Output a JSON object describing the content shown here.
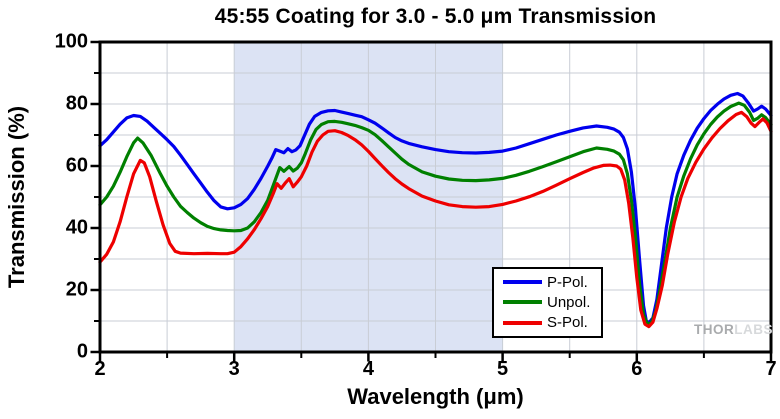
{
  "title": "45:55 Coating for 3.0 - 5.0 μm Transmission",
  "watermark": {
    "part1": "THOR",
    "part2": "LABS"
  },
  "colors": {
    "p_pol": "#0000EE",
    "unpol": "#008000",
    "s_pol": "#EE0000",
    "shaded_band": "#dce3f4",
    "grid": "#c9cdd5",
    "frame": "#000000"
  },
  "chart_data": {
    "type": "line",
    "title": "45:55 Coating for 3.0 - 5.0 μm Transmission",
    "xlabel": "Wavelength (μm)",
    "ylabel": "Transmission (%)",
    "xlim": [
      2,
      7
    ],
    "ylim": [
      0,
      100
    ],
    "x_major_ticks": [
      2,
      3,
      4,
      5,
      6,
      7
    ],
    "x_minor_ticks": [
      2.5,
      3.5,
      4.5,
      5.5,
      6.5
    ],
    "y_major_ticks": [
      0,
      20,
      40,
      60,
      80,
      100
    ],
    "y_minor_ticks": [
      10,
      30,
      50,
      70,
      90
    ],
    "grid": {
      "on": true,
      "x_step": 0.5,
      "y_step": 10
    },
    "shaded_band": {
      "x_from": 3.0,
      "x_to": 5.0
    },
    "legend_position": "inside bottom-center",
    "series": [
      {
        "name": "P-Pol.",
        "color": "#0000EE",
        "points": [
          [
            2.0,
            66.5
          ],
          [
            2.05,
            68.5
          ],
          [
            2.1,
            71.0
          ],
          [
            2.15,
            73.5
          ],
          [
            2.2,
            75.5
          ],
          [
            2.25,
            76.3
          ],
          [
            2.3,
            76.0
          ],
          [
            2.35,
            74.5
          ],
          [
            2.4,
            72.5
          ],
          [
            2.45,
            70.5
          ],
          [
            2.5,
            68.5
          ],
          [
            2.55,
            66.3
          ],
          [
            2.6,
            63.5
          ],
          [
            2.65,
            60.5
          ],
          [
            2.7,
            57.5
          ],
          [
            2.75,
            54.5
          ],
          [
            2.8,
            51.5
          ],
          [
            2.85,
            48.8
          ],
          [
            2.9,
            46.8
          ],
          [
            2.95,
            46.2
          ],
          [
            3.0,
            46.5
          ],
          [
            3.05,
            47.6
          ],
          [
            3.1,
            49.5
          ],
          [
            3.15,
            52.5
          ],
          [
            3.2,
            56.0
          ],
          [
            3.25,
            60.0
          ],
          [
            3.28,
            62.5
          ],
          [
            3.31,
            65.3
          ],
          [
            3.34,
            64.8
          ],
          [
            3.37,
            64.3
          ],
          [
            3.4,
            65.6
          ],
          [
            3.43,
            64.6
          ],
          [
            3.46,
            65.2
          ],
          [
            3.49,
            66.5
          ],
          [
            3.52,
            69.5
          ],
          [
            3.56,
            73.5
          ],
          [
            3.6,
            76.0
          ],
          [
            3.65,
            77.3
          ],
          [
            3.7,
            77.8
          ],
          [
            3.75,
            77.9
          ],
          [
            3.8,
            77.4
          ],
          [
            3.85,
            76.9
          ],
          [
            3.9,
            76.4
          ],
          [
            3.95,
            75.9
          ],
          [
            4.0,
            74.9
          ],
          [
            4.05,
            73.8
          ],
          [
            4.1,
            72.3
          ],
          [
            4.15,
            70.7
          ],
          [
            4.2,
            69.2
          ],
          [
            4.25,
            68.1
          ],
          [
            4.3,
            67.3
          ],
          [
            4.4,
            66.2
          ],
          [
            4.5,
            65.3
          ],
          [
            4.6,
            64.6
          ],
          [
            4.7,
            64.3
          ],
          [
            4.8,
            64.2
          ],
          [
            4.9,
            64.4
          ],
          [
            5.0,
            64.8
          ],
          [
            5.1,
            65.8
          ],
          [
            5.2,
            67.2
          ],
          [
            5.3,
            68.6
          ],
          [
            5.4,
            70.0
          ],
          [
            5.5,
            71.2
          ],
          [
            5.6,
            72.3
          ],
          [
            5.7,
            72.9
          ],
          [
            5.78,
            72.5
          ],
          [
            5.83,
            71.9
          ],
          [
            5.87,
            70.9
          ],
          [
            5.9,
            69.2
          ],
          [
            5.93,
            65.5
          ],
          [
            5.96,
            58.0
          ],
          [
            5.99,
            46.0
          ],
          [
            6.02,
            30.0
          ],
          [
            6.05,
            15.0
          ],
          [
            6.07,
            10.2
          ],
          [
            6.09,
            9.4
          ],
          [
            6.12,
            11.0
          ],
          [
            6.15,
            17.0
          ],
          [
            6.18,
            27.0
          ],
          [
            6.22,
            40.0
          ],
          [
            6.26,
            50.0
          ],
          [
            6.3,
            57.5
          ],
          [
            6.35,
            63.5
          ],
          [
            6.4,
            68.3
          ],
          [
            6.45,
            72.2
          ],
          [
            6.5,
            75.3
          ],
          [
            6.55,
            77.9
          ],
          [
            6.6,
            79.9
          ],
          [
            6.65,
            81.6
          ],
          [
            6.7,
            82.8
          ],
          [
            6.75,
            83.4
          ],
          [
            6.79,
            82.6
          ],
          [
            6.83,
            80.4
          ],
          [
            6.87,
            77.7
          ],
          [
            6.9,
            78.4
          ],
          [
            6.93,
            79.3
          ],
          [
            6.96,
            78.4
          ],
          [
            7.0,
            76.3
          ]
        ]
      },
      {
        "name": "Unpol.",
        "color": "#008000",
        "points": [
          [
            2.0,
            47.5
          ],
          [
            2.05,
            50.0
          ],
          [
            2.1,
            53.5
          ],
          [
            2.15,
            58.0
          ],
          [
            2.2,
            63.0
          ],
          [
            2.25,
            67.5
          ],
          [
            2.28,
            69.0
          ],
          [
            2.32,
            67.5
          ],
          [
            2.38,
            63.5
          ],
          [
            2.45,
            57.5
          ],
          [
            2.5,
            53.5
          ],
          [
            2.55,
            50.0
          ],
          [
            2.6,
            47.0
          ],
          [
            2.65,
            45.0
          ],
          [
            2.7,
            43.2
          ],
          [
            2.75,
            41.7
          ],
          [
            2.8,
            40.5
          ],
          [
            2.85,
            39.8
          ],
          [
            2.9,
            39.4
          ],
          [
            2.95,
            39.2
          ],
          [
            3.0,
            39.1
          ],
          [
            3.05,
            39.2
          ],
          [
            3.1,
            40.0
          ],
          [
            3.15,
            42.0
          ],
          [
            3.2,
            45.0
          ],
          [
            3.25,
            49.0
          ],
          [
            3.28,
            52.5
          ],
          [
            3.31,
            56.0
          ],
          [
            3.34,
            59.5
          ],
          [
            3.37,
            58.3
          ],
          [
            3.41,
            59.8
          ],
          [
            3.44,
            58.4
          ],
          [
            3.47,
            59.3
          ],
          [
            3.5,
            61.0
          ],
          [
            3.53,
            64.0
          ],
          [
            3.57,
            68.5
          ],
          [
            3.61,
            71.8
          ],
          [
            3.65,
            73.4
          ],
          [
            3.7,
            74.3
          ],
          [
            3.75,
            74.4
          ],
          [
            3.8,
            74.1
          ],
          [
            3.85,
            73.6
          ],
          [
            3.9,
            73.1
          ],
          [
            3.95,
            72.4
          ],
          [
            4.0,
            71.5
          ],
          [
            4.05,
            70.1
          ],
          [
            4.1,
            68.2
          ],
          [
            4.15,
            66.2
          ],
          [
            4.2,
            64.2
          ],
          [
            4.25,
            62.2
          ],
          [
            4.3,
            60.5
          ],
          [
            4.4,
            58.1
          ],
          [
            4.5,
            56.7
          ],
          [
            4.6,
            55.8
          ],
          [
            4.7,
            55.4
          ],
          [
            4.8,
            55.3
          ],
          [
            4.9,
            55.5
          ],
          [
            5.0,
            56.0
          ],
          [
            5.1,
            57.0
          ],
          [
            5.2,
            58.3
          ],
          [
            5.3,
            59.8
          ],
          [
            5.4,
            61.4
          ],
          [
            5.5,
            63.0
          ],
          [
            5.6,
            64.6
          ],
          [
            5.7,
            65.8
          ],
          [
            5.78,
            65.4
          ],
          [
            5.83,
            64.8
          ],
          [
            5.87,
            63.8
          ],
          [
            5.9,
            62.0
          ],
          [
            5.93,
            57.5
          ],
          [
            5.96,
            49.0
          ],
          [
            5.99,
            37.0
          ],
          [
            6.02,
            22.0
          ],
          [
            6.05,
            12.0
          ],
          [
            6.08,
            8.9
          ],
          [
            6.11,
            9.6
          ],
          [
            6.14,
            13.0
          ],
          [
            6.17,
            19.5
          ],
          [
            6.21,
            29.5
          ],
          [
            6.25,
            40.0
          ],
          [
            6.3,
            50.0
          ],
          [
            6.35,
            56.8
          ],
          [
            6.4,
            62.3
          ],
          [
            6.45,
            66.8
          ],
          [
            6.5,
            70.4
          ],
          [
            6.55,
            73.4
          ],
          [
            6.6,
            75.8
          ],
          [
            6.65,
            77.7
          ],
          [
            6.7,
            79.2
          ],
          [
            6.76,
            80.3
          ],
          [
            6.8,
            79.6
          ],
          [
            6.84,
            77.4
          ],
          [
            6.87,
            74.7
          ],
          [
            6.9,
            75.4
          ],
          [
            6.93,
            76.5
          ],
          [
            6.96,
            75.6
          ],
          [
            7.0,
            73.4
          ]
        ]
      },
      {
        "name": "S-Pol.",
        "color": "#EE0000",
        "points": [
          [
            2.0,
            29.0
          ],
          [
            2.05,
            31.5
          ],
          [
            2.1,
            35.5
          ],
          [
            2.15,
            42.0
          ],
          [
            2.2,
            50.0
          ],
          [
            2.25,
            57.5
          ],
          [
            2.3,
            61.8
          ],
          [
            2.33,
            61.0
          ],
          [
            2.37,
            56.5
          ],
          [
            2.42,
            48.5
          ],
          [
            2.47,
            41.0
          ],
          [
            2.52,
            35.0
          ],
          [
            2.56,
            32.5
          ],
          [
            2.6,
            31.9
          ],
          [
            2.7,
            31.7
          ],
          [
            2.8,
            31.8
          ],
          [
            2.9,
            31.7
          ],
          [
            2.95,
            31.7
          ],
          [
            3.0,
            32.2
          ],
          [
            3.05,
            34.0
          ],
          [
            3.1,
            36.5
          ],
          [
            3.15,
            39.5
          ],
          [
            3.2,
            43.0
          ],
          [
            3.25,
            47.0
          ],
          [
            3.29,
            51.0
          ],
          [
            3.32,
            54.3
          ],
          [
            3.35,
            52.8
          ],
          [
            3.38,
            54.5
          ],
          [
            3.41,
            55.9
          ],
          [
            3.44,
            53.3
          ],
          [
            3.47,
            54.8
          ],
          [
            3.5,
            56.5
          ],
          [
            3.54,
            60.0
          ],
          [
            3.58,
            64.5
          ],
          [
            3.62,
            68.0
          ],
          [
            3.66,
            70.0
          ],
          [
            3.7,
            71.2
          ],
          [
            3.75,
            71.4
          ],
          [
            3.8,
            70.8
          ],
          [
            3.85,
            69.8
          ],
          [
            3.9,
            68.5
          ],
          [
            3.95,
            66.8
          ],
          [
            4.0,
            64.7
          ],
          [
            4.05,
            62.4
          ],
          [
            4.1,
            60.1
          ],
          [
            4.15,
            57.9
          ],
          [
            4.2,
            55.9
          ],
          [
            4.25,
            54.2
          ],
          [
            4.3,
            52.7
          ],
          [
            4.4,
            50.3
          ],
          [
            4.5,
            48.7
          ],
          [
            4.6,
            47.5
          ],
          [
            4.7,
            46.9
          ],
          [
            4.8,
            46.7
          ],
          [
            4.9,
            46.9
          ],
          [
            5.0,
            47.6
          ],
          [
            5.1,
            48.7
          ],
          [
            5.2,
            50.1
          ],
          [
            5.3,
            51.8
          ],
          [
            5.4,
            53.8
          ],
          [
            5.5,
            55.9
          ],
          [
            5.6,
            57.9
          ],
          [
            5.68,
            59.4
          ],
          [
            5.75,
            60.2
          ],
          [
            5.8,
            60.3
          ],
          [
            5.85,
            60.0
          ],
          [
            5.88,
            59.0
          ],
          [
            5.91,
            55.5
          ],
          [
            5.94,
            48.0
          ],
          [
            5.97,
            37.0
          ],
          [
            6.0,
            24.0
          ],
          [
            6.03,
            13.5
          ],
          [
            6.06,
            9.0
          ],
          [
            6.09,
            8.2
          ],
          [
            6.12,
            9.6
          ],
          [
            6.15,
            14.0
          ],
          [
            6.19,
            21.5
          ],
          [
            6.23,
            31.5
          ],
          [
            6.28,
            42.0
          ],
          [
            6.33,
            50.0
          ],
          [
            6.38,
            56.0
          ],
          [
            6.44,
            61.2
          ],
          [
            6.5,
            65.5
          ],
          [
            6.56,
            69.1
          ],
          [
            6.62,
            72.1
          ],
          [
            6.68,
            74.6
          ],
          [
            6.74,
            76.6
          ],
          [
            6.78,
            77.3
          ],
          [
            6.82,
            75.9
          ],
          [
            6.85,
            73.9
          ],
          [
            6.88,
            72.7
          ],
          [
            6.91,
            74.0
          ],
          [
            6.94,
            75.2
          ],
          [
            6.97,
            73.9
          ],
          [
            7.0,
            71.2
          ]
        ]
      }
    ]
  }
}
